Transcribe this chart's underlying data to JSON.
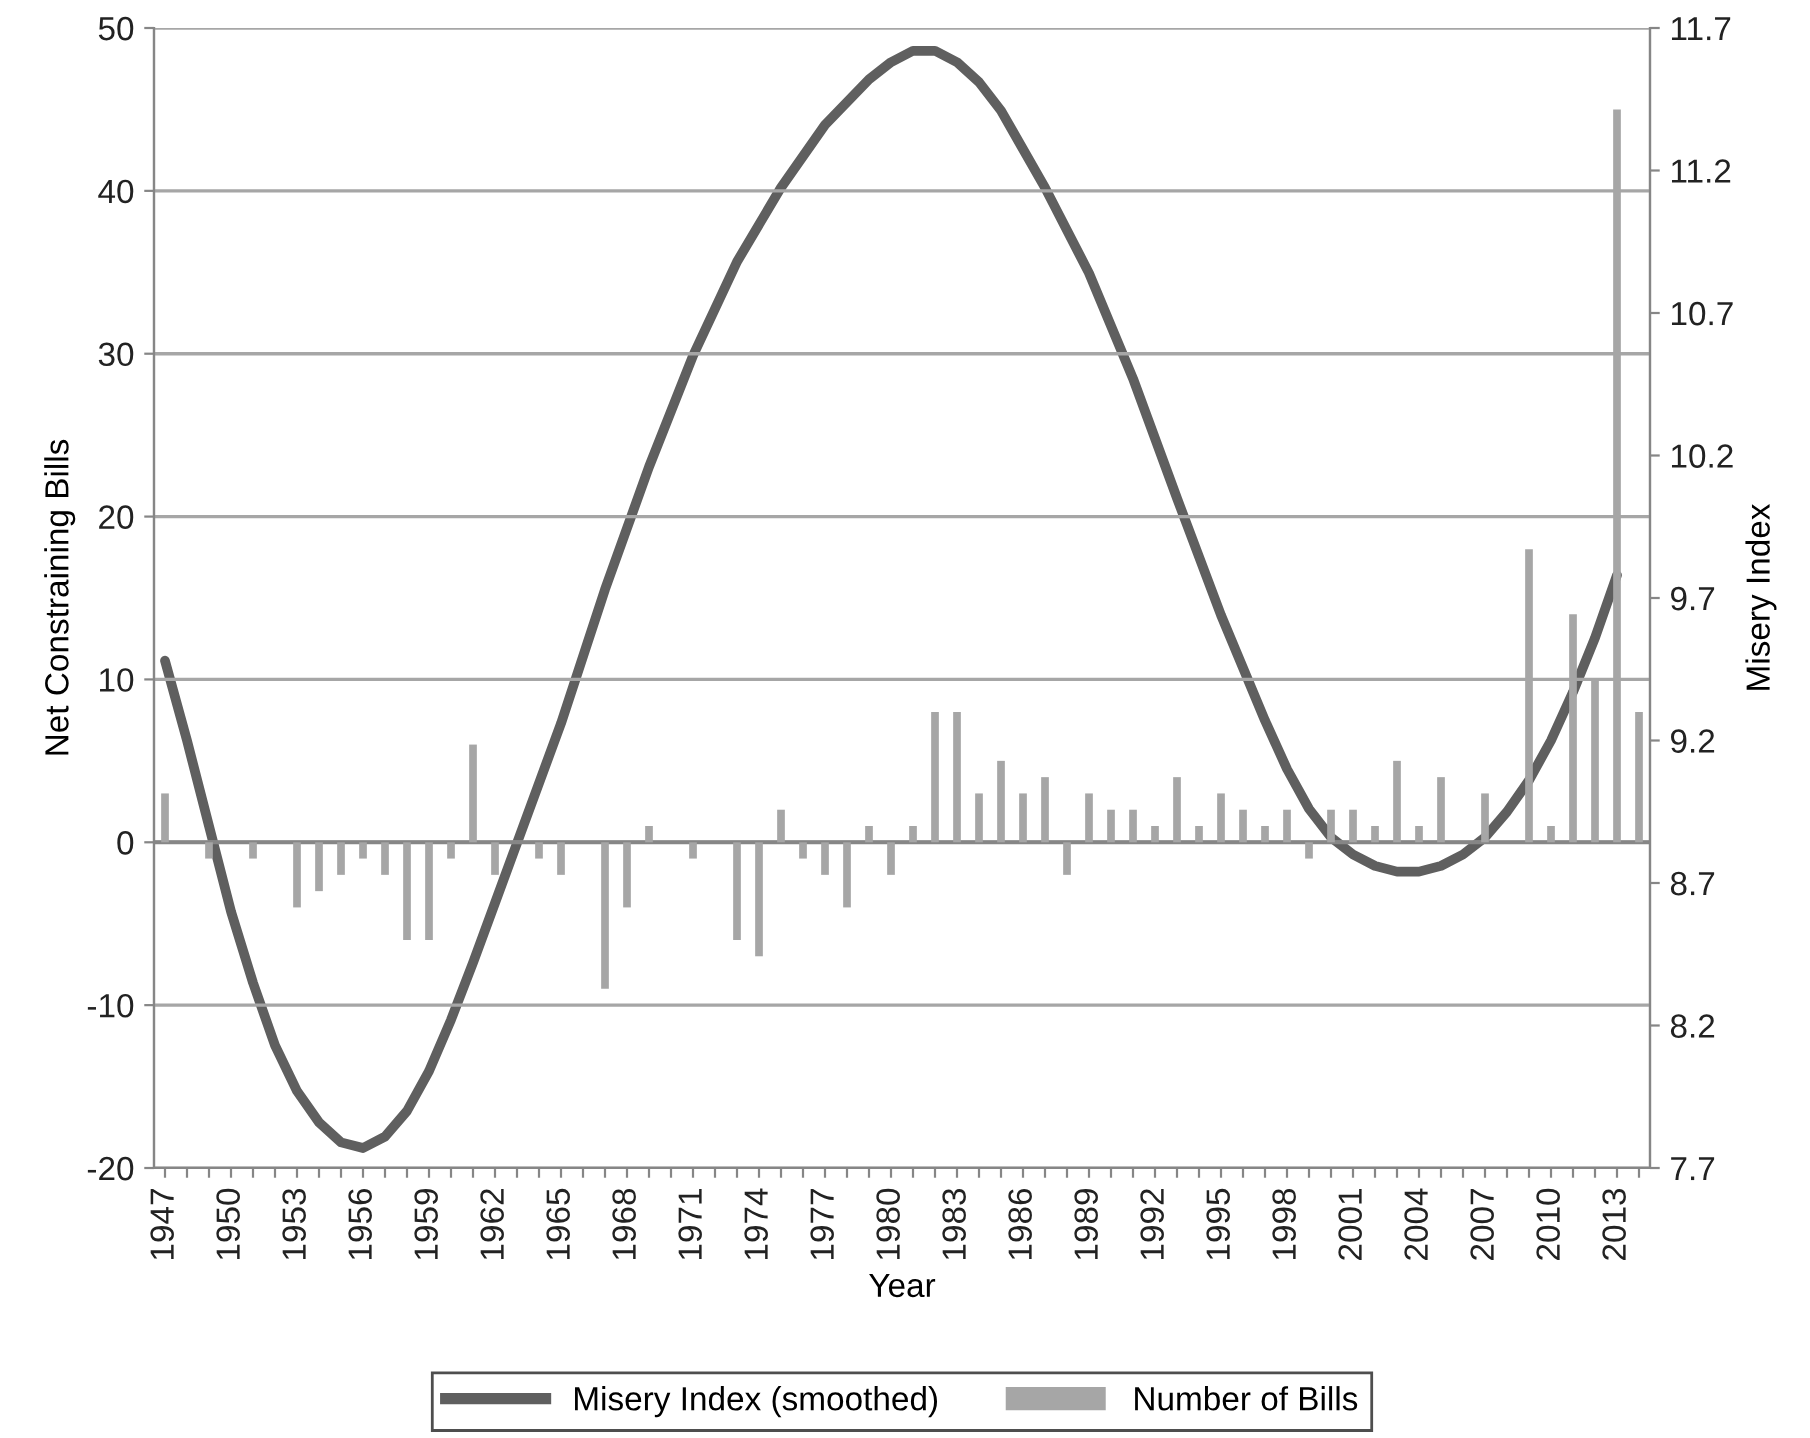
{
  "chart_data": {
    "type": "bar",
    "xlabel": "Year",
    "ylabel": "Net Constraining Bills",
    "y2label": "Misery Index",
    "x": [
      1947,
      1948,
      1949,
      1950,
      1951,
      1952,
      1953,
      1954,
      1955,
      1956,
      1957,
      1958,
      1959,
      1960,
      1961,
      1962,
      1963,
      1964,
      1965,
      1966,
      1967,
      1968,
      1969,
      1970,
      1971,
      1972,
      1973,
      1974,
      1975,
      1976,
      1977,
      1978,
      1979,
      1980,
      1981,
      1982,
      1983,
      1984,
      1985,
      1986,
      1987,
      1988,
      1989,
      1990,
      1991,
      1992,
      1993,
      1994,
      1995,
      1996,
      1997,
      1998,
      1999,
      2000,
      2001,
      2002,
      2003,
      2004,
      2005,
      2006,
      2007,
      2008,
      2009,
      2010,
      2011,
      2012,
      2013,
      2014
    ],
    "series": [
      {
        "name": "Misery Index (smoothed)",
        "type": "line",
        "axis": "y2",
        "color": "#5f5f5f",
        "x": [
          1947,
          1948,
          1949,
          1950,
          1951,
          1952,
          1953,
          1954,
          1955,
          1956,
          1957,
          1958,
          1959,
          1960,
          1961,
          1962,
          1963,
          1965,
          1967,
          1969,
          1971,
          1973,
          1975,
          1977,
          1979,
          1980,
          1981,
          1982,
          1983,
          1984,
          1985,
          1987,
          1989,
          1991,
          1993,
          1995,
          1997,
          1998,
          1999,
          2000,
          2001,
          2002,
          2003,
          2004,
          2005,
          2006,
          2007,
          2008,
          2009,
          2010,
          2011,
          2012,
          2013
        ],
        "values": [
          9.48,
          9.2,
          8.9,
          8.6,
          8.35,
          8.13,
          7.97,
          7.86,
          7.79,
          7.77,
          7.81,
          7.9,
          8.04,
          8.22,
          8.42,
          8.63,
          8.84,
          9.26,
          9.73,
          10.16,
          10.55,
          10.88,
          11.14,
          11.36,
          11.52,
          11.58,
          11.62,
          11.62,
          11.58,
          11.51,
          11.41,
          11.14,
          10.84,
          10.47,
          10.05,
          9.64,
          9.27,
          9.1,
          8.96,
          8.86,
          8.8,
          8.76,
          8.74,
          8.74,
          8.76,
          8.8,
          8.86,
          8.95,
          9.06,
          9.2,
          9.37,
          9.56,
          9.78
        ]
      },
      {
        "name": "Number of Bills",
        "color": "#a6a6a6",
        "values": [
          3,
          0,
          -1,
          0,
          -1,
          0,
          -4,
          -3,
          -2,
          -1,
          -2,
          -6,
          -6,
          -1,
          6,
          -2,
          0,
          -1,
          -2,
          0,
          -9,
          -4,
          1,
          0,
          -1,
          0,
          -6,
          -7,
          2,
          -1,
          -2,
          -4,
          1,
          -2,
          1,
          8,
          8,
          3,
          5,
          3,
          4,
          -2,
          3,
          2,
          2,
          1,
          4,
          1,
          3,
          2,
          1,
          2,
          -1,
          2,
          2,
          1,
          5,
          1,
          4,
          0,
          3,
          0,
          18,
          1,
          14,
          10,
          45,
          8
        ]
      }
    ],
    "xlim": [
      1946.5,
      2014.5
    ],
    "xticks": [
      1947,
      {
        "value": 1948,
        "label": null
      },
      {
        "value": 1949,
        "label": null
      },
      1950,
      {
        "value": 1951,
        "label": null
      },
      {
        "value": 1952,
        "label": null
      },
      1953,
      {
        "value": 1954,
        "label": null
      },
      {
        "value": 1955,
        "label": null
      },
      1956,
      {
        "value": 1957,
        "label": null
      },
      {
        "value": 1958,
        "label": null
      },
      1959,
      {
        "value": 1960,
        "label": null
      },
      {
        "value": 1961,
        "label": null
      },
      1962,
      {
        "value": 1963,
        "label": null
      },
      {
        "value": 1964,
        "label": null
      },
      1965,
      {
        "value": 1966,
        "label": null
      },
      {
        "value": 1967,
        "label": null
      },
      1968,
      {
        "value": 1969,
        "label": null
      },
      {
        "value": 1970,
        "label": null
      },
      1971,
      {
        "value": 1972,
        "label": null
      },
      {
        "value": 1973,
        "label": null
      },
      1974,
      {
        "value": 1975,
        "label": null
      },
      {
        "value": 1976,
        "label": null
      },
      1977,
      {
        "value": 1978,
        "label": null
      },
      {
        "value": 1979,
        "label": null
      },
      1980,
      {
        "value": 1981,
        "label": null
      },
      {
        "value": 1982,
        "label": null
      },
      1983,
      {
        "value": 1984,
        "label": null
      },
      {
        "value": 1985,
        "label": null
      },
      1986,
      {
        "value": 1987,
        "label": null
      },
      {
        "value": 1988,
        "label": null
      },
      1989,
      {
        "value": 1990,
        "label": null
      },
      {
        "value": 1991,
        "label": null
      },
      1992,
      {
        "value": 1993,
        "label": null
      },
      {
        "value": 1994,
        "label": null
      },
      1995,
      {
        "value": 1996,
        "label": null
      },
      {
        "value": 1997,
        "label": null
      },
      1998,
      {
        "value": 1999,
        "label": null
      },
      {
        "value": 2000,
        "label": null
      },
      2001,
      {
        "value": 2002,
        "label": null
      },
      {
        "value": 2003,
        "label": null
      },
      2004,
      {
        "value": 2005,
        "label": null
      },
      {
        "value": 2006,
        "label": null
      },
      2007,
      {
        "value": 2008,
        "label": null
      },
      {
        "value": 2009,
        "label": null
      },
      2010,
      {
        "value": 2011,
        "label": null
      },
      {
        "value": 2012,
        "label": null
      },
      2013,
      {
        "value": 2014,
        "label": null
      }
    ],
    "ylim": [
      -20,
      50
    ],
    "yticks": [
      -20,
      -10,
      0,
      10,
      20,
      30,
      40,
      50
    ],
    "y2lim": [
      7.7,
      11.7
    ],
    "y2ticks": [
      7.7,
      8.2,
      8.7,
      9.2,
      9.7,
      10.2,
      10.7,
      11.2,
      11.7
    ],
    "grid": "y",
    "legend": "bottom"
  }
}
